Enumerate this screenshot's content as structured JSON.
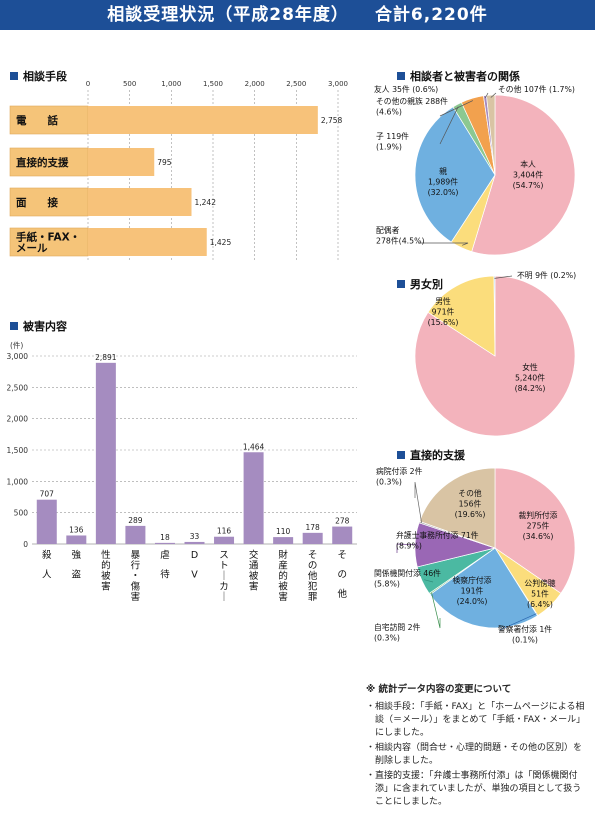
{
  "banner": {
    "title": "相談受理状況（平成28年度）",
    "total": "合計6,220件"
  },
  "chart_data": [
    {
      "id": "consult_method",
      "type": "bar",
      "orientation": "horizontal",
      "title": "相談手段",
      "categories": [
        "電　　話",
        "直接的支援",
        "面　　接",
        "手紙・FAX・\nメール"
      ],
      "values": [
        2758,
        795,
        1242,
        1425
      ],
      "value_labels": [
        "2,758",
        "795",
        "1,242",
        "1,425"
      ],
      "ticks": [
        0,
        500,
        1000,
        1500,
        2000,
        2500,
        3000
      ],
      "tick_labels": [
        "0",
        "500",
        "1,000",
        "1,500",
        "2,000",
        "2,500",
        "3,000"
      ],
      "xlim": [
        0,
        3000
      ],
      "grid": true,
      "colors": {
        "bar": "#f7c27a",
        "category_bg": "#f5c479"
      }
    },
    {
      "id": "damage",
      "type": "bar",
      "title": "被害内容",
      "unit_label": "(件)",
      "categories": [
        "殺\n\n人",
        "強\n\n盗",
        "性的被害",
        "暴行・傷害",
        "虐\n\n待",
        "D\n\nV",
        "ストーカー",
        "交通被害",
        "財産的被害",
        "その他犯罪",
        "そ\n\nの\n\n他"
      ],
      "values": [
        707,
        136,
        2891,
        289,
        18,
        33,
        116,
        1464,
        110,
        178,
        278
      ],
      "value_labels": [
        "707",
        "136",
        "2,891",
        "289",
        "18",
        "33",
        "116",
        "1,464",
        "110",
        "178",
        "278"
      ],
      "ticks": [
        0,
        500,
        1000,
        1500,
        2000,
        2500,
        3000
      ],
      "tick_labels": [
        "0",
        "500",
        "1,000",
        "1,500",
        "2,000",
        "2,500",
        "3,000"
      ],
      "ylim": [
        0,
        3000
      ],
      "grid": true,
      "colors": {
        "bar": "#a58cc0"
      }
    },
    {
      "id": "relation",
      "type": "pie",
      "title": "相談者と被害者の関係",
      "slices": [
        {
          "label": "本人",
          "count": "3,404件",
          "pct": "(54.7%)",
          "value": 54.7,
          "color": "#f3b3bc"
        },
        {
          "label": "配偶者",
          "count": "278件",
          "pct": "(4.5%)",
          "value": 4.5,
          "color": "#fbdd7c"
        },
        {
          "label": "親",
          "count": "1,989件",
          "pct": "(32.0%)",
          "value": 32.0,
          "color": "#6fb0e0"
        },
        {
          "label": "子",
          "count": "119件",
          "pct": "(1.9%)",
          "value": 1.9,
          "color": "#8cc891"
        },
        {
          "label": "その他の親族",
          "count": "288件",
          "pct": "(4.6%)",
          "value": 4.6,
          "color": "#f2a14e"
        },
        {
          "label": "友人",
          "count": "35件",
          "pct": "(0.6%)",
          "value": 0.6,
          "color": "#a68bbf"
        },
        {
          "label": "その他",
          "count": "107件",
          "pct": "(1.7%)",
          "value": 1.7,
          "color": "#d9c4a4"
        }
      ]
    },
    {
      "id": "gender",
      "type": "pie",
      "title": "男女別",
      "slices": [
        {
          "label": "女性",
          "count": "5,240件",
          "pct": "(84.2%)",
          "value": 84.2,
          "color": "#f3b3bc"
        },
        {
          "label": "男性",
          "count": "971件",
          "pct": "(15.6%)",
          "value": 15.6,
          "color": "#fbdd7c"
        },
        {
          "label": "不明",
          "count": "9件",
          "pct": "(0.2%)",
          "value": 0.2,
          "color": "#6fb0e0"
        }
      ]
    },
    {
      "id": "direct_support",
      "type": "pie",
      "title": "直接的支援",
      "slices": [
        {
          "label": "裁判所付添",
          "count": "275件",
          "pct": "(34.6%)",
          "value": 34.6,
          "color": "#f3b3bc"
        },
        {
          "label": "公判傍聴",
          "count": "51件",
          "pct": "(6.4%)",
          "value": 6.4,
          "color": "#fbdd7c"
        },
        {
          "label": "警察署付添",
          "count": "1件",
          "pct": "(0.1%)",
          "value": 0.1,
          "color": "#2a66b0"
        },
        {
          "label": "検察庁付添",
          "count": "191件",
          "pct": "(24.0%)",
          "value": 24.0,
          "color": "#6fb0e0"
        },
        {
          "label": "自宅訪問",
          "count": "2件",
          "pct": "(0.3%)",
          "value": 0.3,
          "color": "#8cc891"
        },
        {
          "label": "関係機関付添",
          "count": "46件",
          "pct": "(5.8%)",
          "value": 5.8,
          "color": "#4bb9a2"
        },
        {
          "label": "弁護士事務所付添",
          "count": "71件",
          "pct": "(8.9%)",
          "value": 8.9,
          "color": "#9a67b5"
        },
        {
          "label": "病院付添",
          "count": "2件",
          "pct": "(0.3%)",
          "value": 0.3,
          "color": "#a5a5a5"
        },
        {
          "label": "その他",
          "count": "156件",
          "pct": "(19.6%)",
          "value": 19.6,
          "color": "#d9c4a4"
        }
      ]
    }
  ],
  "notes": {
    "heading": "※ 統計データ内容の変更について",
    "items": [
      "・相談手段：「手紙・FAX」と「ホームページによる相談（＝メール）」をまとめて「手紙・FAX・メール」にしました。",
      "・相談内容（問合せ・心理的問題・その他の区別）を削除しました。",
      "・直接的支援：「弁護士事務所付添」は「関係機関付添」に含まれていましたが、単独の項目として扱うことにしました。"
    ]
  }
}
